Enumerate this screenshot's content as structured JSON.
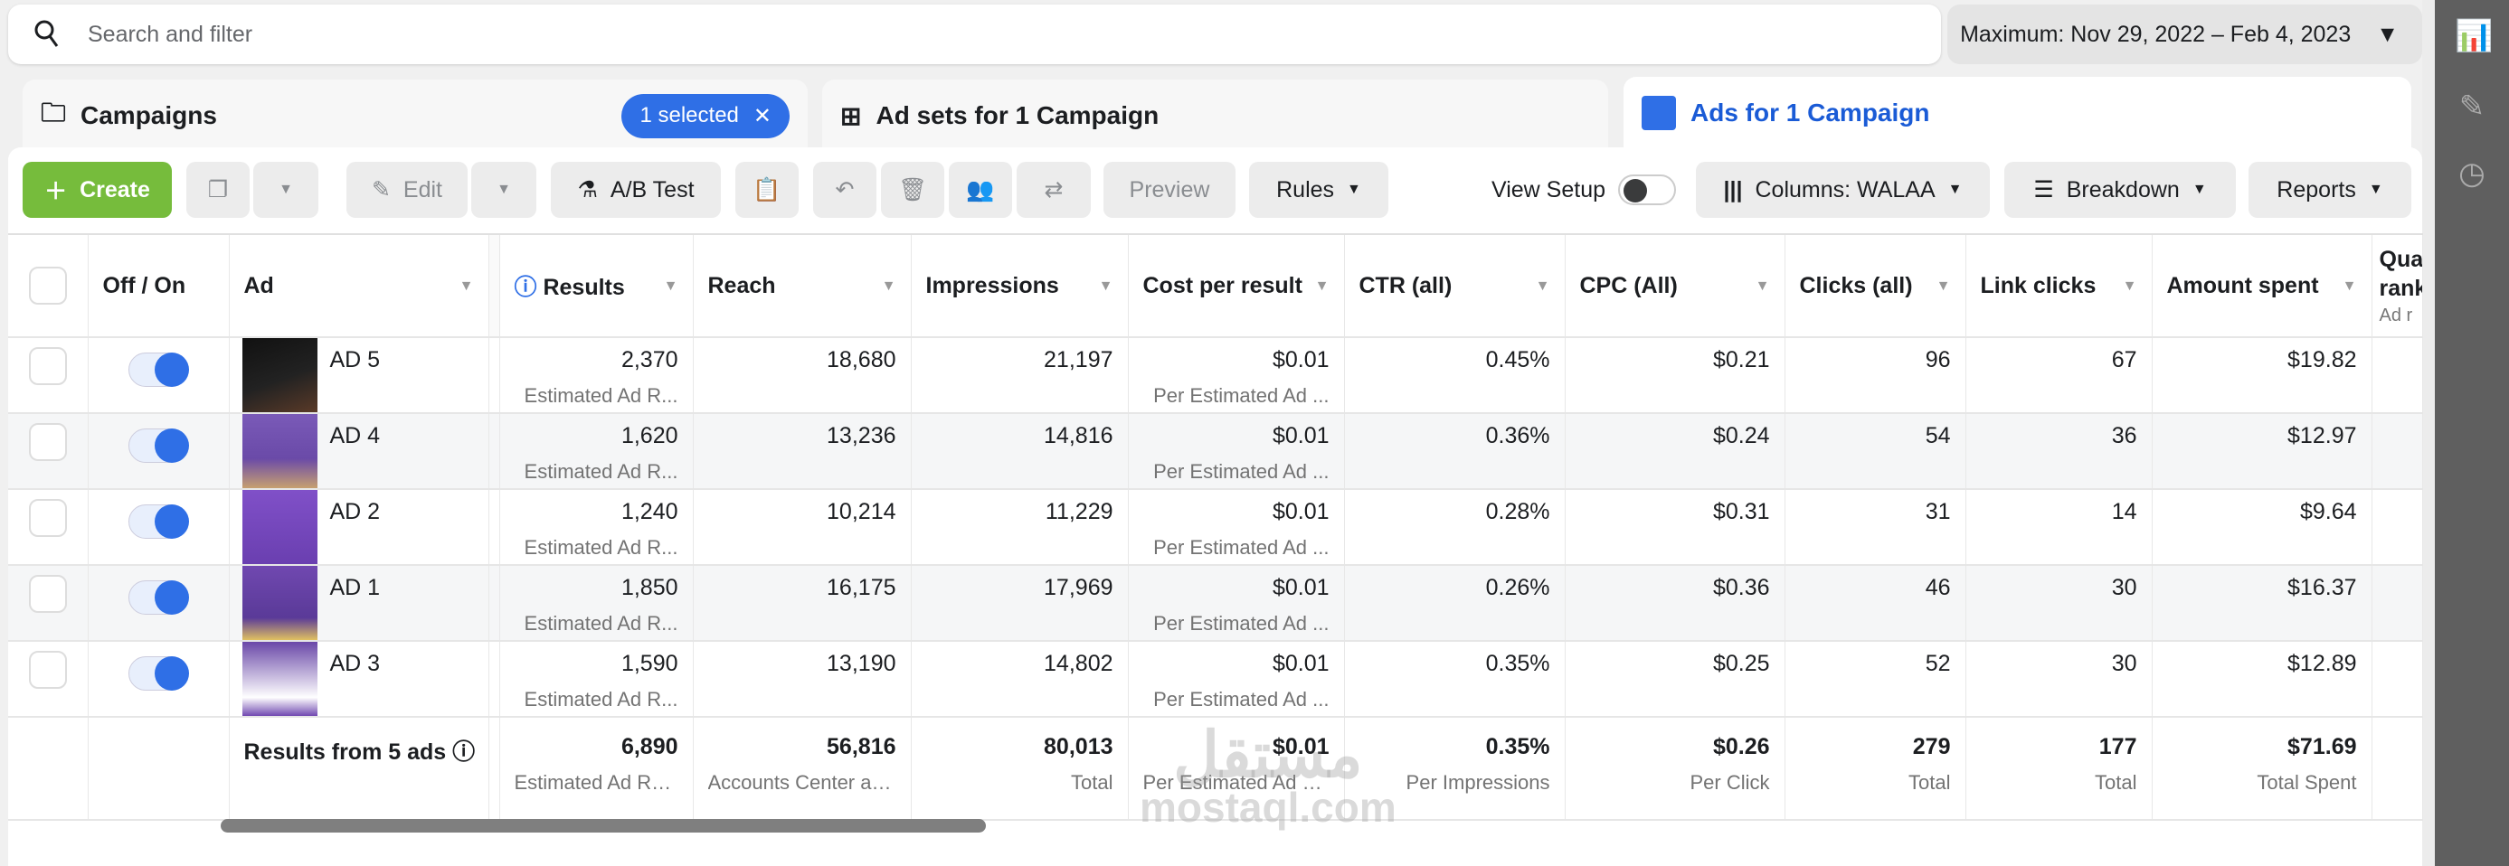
{
  "search": {
    "placeholder": "Search and filter"
  },
  "date_range": "Maximum: Nov 29, 2022 – Feb 4, 2023",
  "tabs": [
    {
      "label": "Campaigns",
      "badge": "1 selected"
    },
    {
      "label": "Ad sets for 1 Campaign"
    },
    {
      "label": "Ads for 1 Campaign",
      "active": true
    }
  ],
  "toolbar": {
    "create": "Create",
    "edit": "Edit",
    "ab_test": "A/B Test",
    "preview": "Preview",
    "rules": "Rules",
    "view_setup": "View Setup",
    "view_setup_on": false,
    "columns": "Columns: WALAA",
    "breakdown": "Breakdown",
    "reports": "Reports"
  },
  "columns": [
    "Off / On",
    "Ad",
    "Results",
    "Reach",
    "Impressions",
    "Cost per result",
    "CTR (all)",
    "CPC (All)",
    "Clicks (all)",
    "Link clicks",
    "Amount spent",
    "Quality ranking"
  ],
  "quality_sub": "Ad r",
  "rows": [
    {
      "ad": "AD 5",
      "on": true,
      "results": "2,370",
      "results_sub": "Estimated Ad R...",
      "reach": "18,680",
      "impressions": "21,197",
      "cpr": "$0.01",
      "cpr_sub": "Per Estimated Ad ...",
      "ctr": "0.45%",
      "cpc": "$0.21",
      "clicks": "96",
      "link": "67",
      "spent": "$19.82"
    },
    {
      "ad": "AD 4",
      "on": true,
      "results": "1,620",
      "results_sub": "Estimated Ad R...",
      "reach": "13,236",
      "impressions": "14,816",
      "cpr": "$0.01",
      "cpr_sub": "Per Estimated Ad ...",
      "ctr": "0.36%",
      "cpc": "$0.24",
      "clicks": "54",
      "link": "36",
      "spent": "$12.97"
    },
    {
      "ad": "AD 2",
      "on": true,
      "results": "1,240",
      "results_sub": "Estimated Ad R...",
      "reach": "10,214",
      "impressions": "11,229",
      "cpr": "$0.01",
      "cpr_sub": "Per Estimated Ad ...",
      "ctr": "0.28%",
      "cpc": "$0.31",
      "clicks": "31",
      "link": "14",
      "spent": "$9.64"
    },
    {
      "ad": "AD 1",
      "on": true,
      "results": "1,850",
      "results_sub": "Estimated Ad R...",
      "reach": "16,175",
      "impressions": "17,969",
      "cpr": "$0.01",
      "cpr_sub": "Per Estimated Ad ...",
      "ctr": "0.26%",
      "cpc": "$0.36",
      "clicks": "46",
      "link": "30",
      "spent": "$16.37"
    },
    {
      "ad": "AD 3",
      "on": true,
      "results": "1,590",
      "results_sub": "Estimated Ad R...",
      "reach": "13,190",
      "impressions": "14,802",
      "cpr": "$0.01",
      "cpr_sub": "Per Estimated Ad ...",
      "ctr": "0.35%",
      "cpc": "$0.25",
      "clicks": "52",
      "link": "30",
      "spent": "$12.89"
    }
  ],
  "totals": {
    "label": "Results from 5 ads",
    "results": "6,890",
    "results_sub": "Estimated Ad Re...",
    "reach": "56,816",
    "reach_sub": "Accounts Center ac...",
    "impressions": "80,013",
    "impressions_sub": "Total",
    "cpr": "$0.01",
    "cpr_sub": "Per Estimated Ad Re...",
    "ctr": "0.35%",
    "ctr_sub": "Per Impressions",
    "cpc": "$0.26",
    "cpc_sub": "Per Click",
    "clicks": "279",
    "clicks_sub": "Total",
    "link": "177",
    "link_sub": "Total",
    "spent": "$71.69",
    "spent_sub": "Total Spent"
  },
  "watermark": "mostaql.com",
  "colors": {
    "accent": "#2f6fe6",
    "create": "#76bc3c"
  }
}
